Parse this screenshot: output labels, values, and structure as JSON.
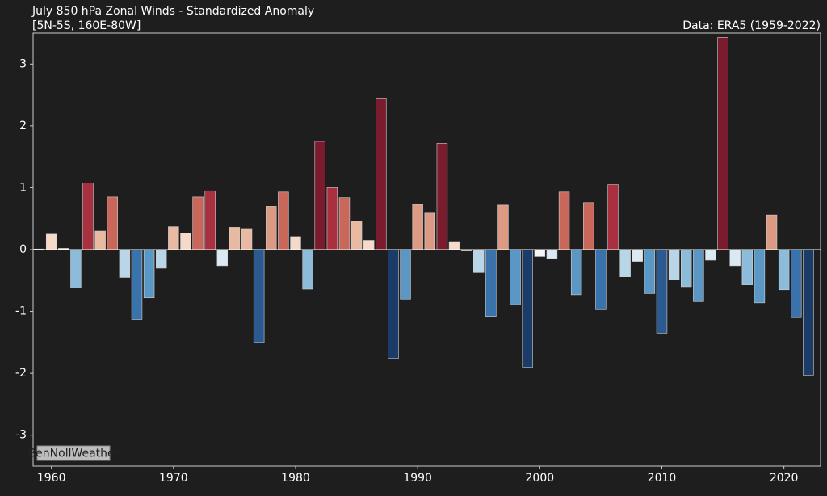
{
  "chart_data": {
    "type": "bar",
    "title": "July 850 hPa Zonal Winds - Standardized Anomaly",
    "subtitle": "[5N-5S, 160E-80W]",
    "source": "Data: ERA5 (1959-2022)",
    "watermark": "BenNollWeather",
    "x": [
      1959,
      1960,
      1961,
      1962,
      1963,
      1964,
      1965,
      1966,
      1967,
      1968,
      1969,
      1970,
      1971,
      1972,
      1973,
      1974,
      1975,
      1976,
      1977,
      1978,
      1979,
      1980,
      1981,
      1982,
      1983,
      1984,
      1985,
      1986,
      1987,
      1988,
      1989,
      1990,
      1991,
      1992,
      1993,
      1994,
      1995,
      1996,
      1997,
      1998,
      1999,
      2000,
      2001,
      2002,
      2003,
      2004,
      2005,
      2006,
      2007,
      2008,
      2009,
      2010,
      2011,
      2012,
      2013,
      2014,
      2015,
      2016,
      2017,
      2018,
      2019,
      2020,
      2021,
      2022
    ],
    "values": [
      0.01,
      0.25,
      0.02,
      -0.62,
      1.08,
      0.3,
      0.85,
      -0.45,
      -1.13,
      -0.78,
      -0.3,
      0.37,
      0.27,
      0.85,
      0.95,
      -0.26,
      0.36,
      0.34,
      -1.5,
      0.7,
      0.93,
      0.21,
      -0.64,
      1.75,
      1.0,
      0.84,
      0.46,
      0.15,
      2.45,
      -1.76,
      -0.8,
      0.73,
      0.59,
      1.72,
      0.13,
      -0.02,
      -0.37,
      -1.08,
      0.72,
      -0.89,
      -1.9,
      -0.11,
      -0.14,
      0.93,
      -0.73,
      0.76,
      -0.97,
      1.05,
      -0.44,
      -0.19,
      -0.71,
      -1.35,
      -0.49,
      -0.6,
      -0.84,
      -0.17,
      3.43,
      -0.26,
      -0.57,
      -0.86,
      0.56,
      -0.65,
      -1.1,
      -2.03
    ],
    "colors": [
      "#f4f4f4",
      "#f6d9c9",
      "#f4f4f4",
      "#8cbcd9",
      "#a8303f",
      "#eab9a2",
      "#c9675a",
      "#b9d6e8",
      "#3a73ac",
      "#5a97c5",
      "#b9d6e8",
      "#eab9a2",
      "#f6d9c9",
      "#c9675a",
      "#a8303f",
      "#dbe9f2",
      "#eab9a2",
      "#eab9a2",
      "#2a5a90",
      "#dc9a84",
      "#c9675a",
      "#f6d9c9",
      "#8cbcd9",
      "#7a1c2e",
      "#a8303f",
      "#c9675a",
      "#eab9a2",
      "#f6d9c9",
      "#7a1c2e",
      "#1b3c68",
      "#5a97c5",
      "#dc9a84",
      "#dc9a84",
      "#7a1c2e",
      "#f6d9c9",
      "#f4f4f4",
      "#b9d6e8",
      "#3a73ac",
      "#dc9a84",
      "#5a97c5",
      "#1b3c68",
      "#f4f4f4",
      "#dbe9f2",
      "#c9675a",
      "#5a97c5",
      "#c9675a",
      "#3a73ac",
      "#a8303f",
      "#b9d6e8",
      "#dbe9f2",
      "#5a97c5",
      "#2a5a90",
      "#b9d6e8",
      "#8cbcd9",
      "#5a97c5",
      "#dbe9f2",
      "#7a1c2e",
      "#dbe9f2",
      "#8cbcd9",
      "#5a97c5",
      "#dc9a84",
      "#8cbcd9",
      "#3a73ac",
      "#1b3c68"
    ],
    "xlim": [
      1958.5,
      2023
    ],
    "xticks": [
      1960,
      1970,
      1980,
      1990,
      2000,
      2010,
      2020
    ],
    "ylim": [
      -3.5,
      3.5
    ],
    "yticks": [
      -3,
      -2,
      -1,
      0,
      1,
      2,
      3
    ]
  }
}
